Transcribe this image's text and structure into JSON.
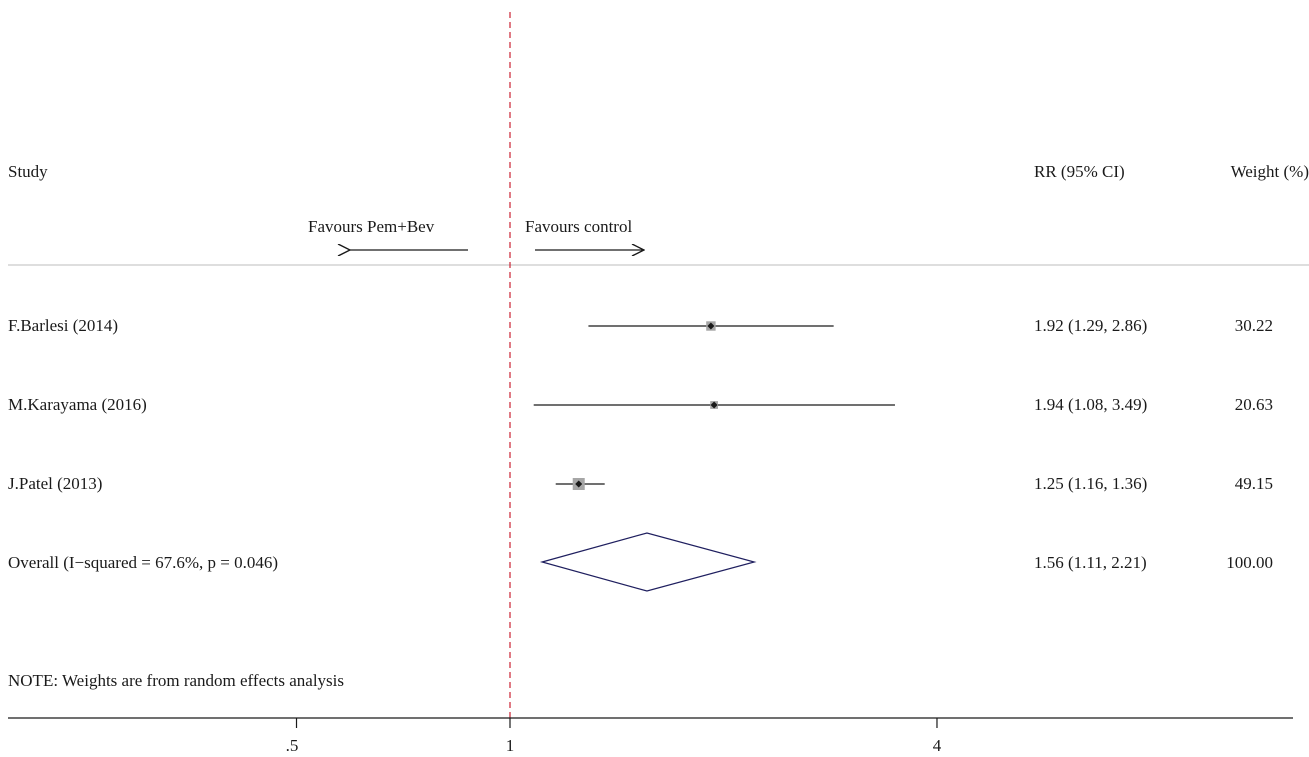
{
  "headers": {
    "study": "Study",
    "rr": "RR (95% CI)",
    "weight": "Weight (%)"
  },
  "favours": {
    "left": "Favours Pem+Bev",
    "right": "Favours control"
  },
  "note": "NOTE: Weights are from random effects analysis",
  "chart_data": {
    "type": "forest",
    "scale": "log",
    "null_line": 1,
    "xlim": [
      0.36,
      13.5
    ],
    "xticks": [
      {
        "value": 0.5,
        "label": ".5"
      },
      {
        "value": 1,
        "label": "1"
      },
      {
        "value": 4,
        "label": "4"
      }
    ],
    "studies": [
      {
        "label": "F.Barlesi (2014)",
        "rr": 1.92,
        "lower": 1.29,
        "upper": 2.86,
        "rr_text": "1.92 (1.29, 2.86)",
        "weight": 30.22,
        "weight_text": "30.22"
      },
      {
        "label": "M.Karayama (2016)",
        "rr": 1.94,
        "lower": 1.08,
        "upper": 3.49,
        "rr_text": "1.94 (1.08, 3.49)",
        "weight": 20.63,
        "weight_text": "20.63"
      },
      {
        "label": "J.Patel (2013)",
        "rr": 1.25,
        "lower": 1.16,
        "upper": 1.36,
        "rr_text": "1.25 (1.16, 1.36)",
        "weight": 49.15,
        "weight_text": "49.15"
      }
    ],
    "overall": {
      "label": "Overall (I−squared = 67.6%, p = 0.046)",
      "rr": 1.56,
      "lower": 1.11,
      "upper": 2.21,
      "rr_text": "1.56 (1.11, 2.21)",
      "weight_text": "100.00"
    },
    "colors": {
      "null_line": "#cc2233",
      "ci_line": "#1a1a1a",
      "weight_box": "#a6a6a6",
      "point": "#1a1a1a",
      "diamond": "#1f1f5f",
      "separator": "#bdbdbd",
      "axis": "#1a1a1a"
    }
  }
}
